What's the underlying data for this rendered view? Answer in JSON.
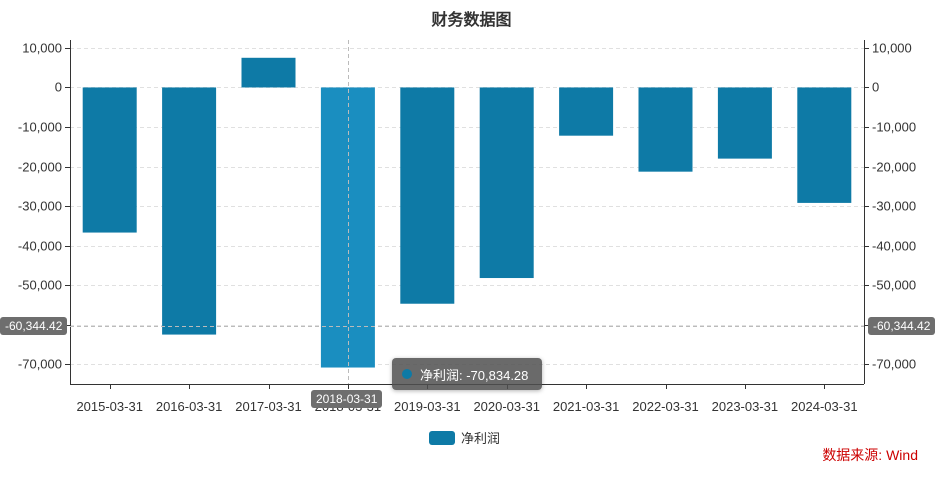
{
  "title": "财务数据图",
  "source_text": "数据来源: Wind",
  "legend": {
    "label": "净利润"
  },
  "tooltip": {
    "label": "净利润: -70,834.28"
  },
  "axis_pointer": {
    "y_value_label": "-60,344.42",
    "x_value_label": "2018-03-31"
  },
  "colors": {
    "bar": "#0e7aa6",
    "bar_highlight": "#1a8ec0",
    "source": "#cc0000"
  },
  "chart_data": {
    "type": "bar",
    "categories": [
      "2015-03-31",
      "2016-03-31",
      "2017-03-31",
      "2018-03-31",
      "2019-03-31",
      "2020-03-31",
      "2021-03-31",
      "2022-03-31",
      "2023-03-31",
      "2024-03-31"
    ],
    "series": [
      {
        "name": "净利润",
        "values": [
          -36700,
          -62500,
          7500,
          -70834.28,
          -54700,
          -48200,
          -12200,
          -21300,
          -18000,
          -29200
        ]
      }
    ],
    "ylim": [
      -75000,
      12000
    ],
    "yticks": [
      10000,
      0,
      -10000,
      -20000,
      -30000,
      -40000,
      -50000,
      -60000,
      -70000
    ],
    "ytick_labels": [
      "10,000",
      "0",
      "-10,000",
      "-20,000",
      "-30,000",
      "-40,000",
      "-50,000",
      "-60,000",
      "-70,000"
    ],
    "highlight_index": 3,
    "pointer_y_value": -60344.42,
    "grid": true
  }
}
